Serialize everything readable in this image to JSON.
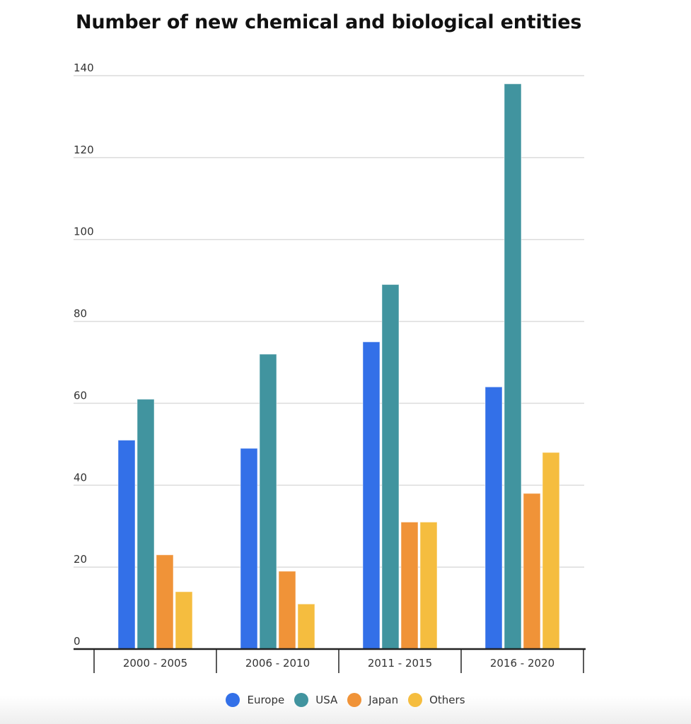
{
  "chart_data": {
    "type": "bar",
    "title": "Number of new chemical and biological entities",
    "xlabel": "",
    "ylabel": "",
    "ylim": [
      0,
      140
    ],
    "yticks": [
      0,
      20,
      40,
      60,
      80,
      100,
      120,
      140
    ],
    "grid": true,
    "legend_position": "bottom",
    "categories": [
      "2000 - 2005",
      "2006 - 2010",
      "2011 - 2015",
      "2016 - 2020"
    ],
    "series": [
      {
        "name": "Europe",
        "color": "#3370e8",
        "values": [
          51,
          49,
          75,
          64
        ]
      },
      {
        "name": "USA",
        "color": "#41949f",
        "values": [
          61,
          72,
          89,
          138
        ]
      },
      {
        "name": "Japan",
        "color": "#f09338",
        "values": [
          23,
          19,
          31,
          38
        ]
      },
      {
        "name": "Others",
        "color": "#f5bd3f",
        "values": [
          14,
          11,
          31,
          48
        ]
      }
    ]
  }
}
